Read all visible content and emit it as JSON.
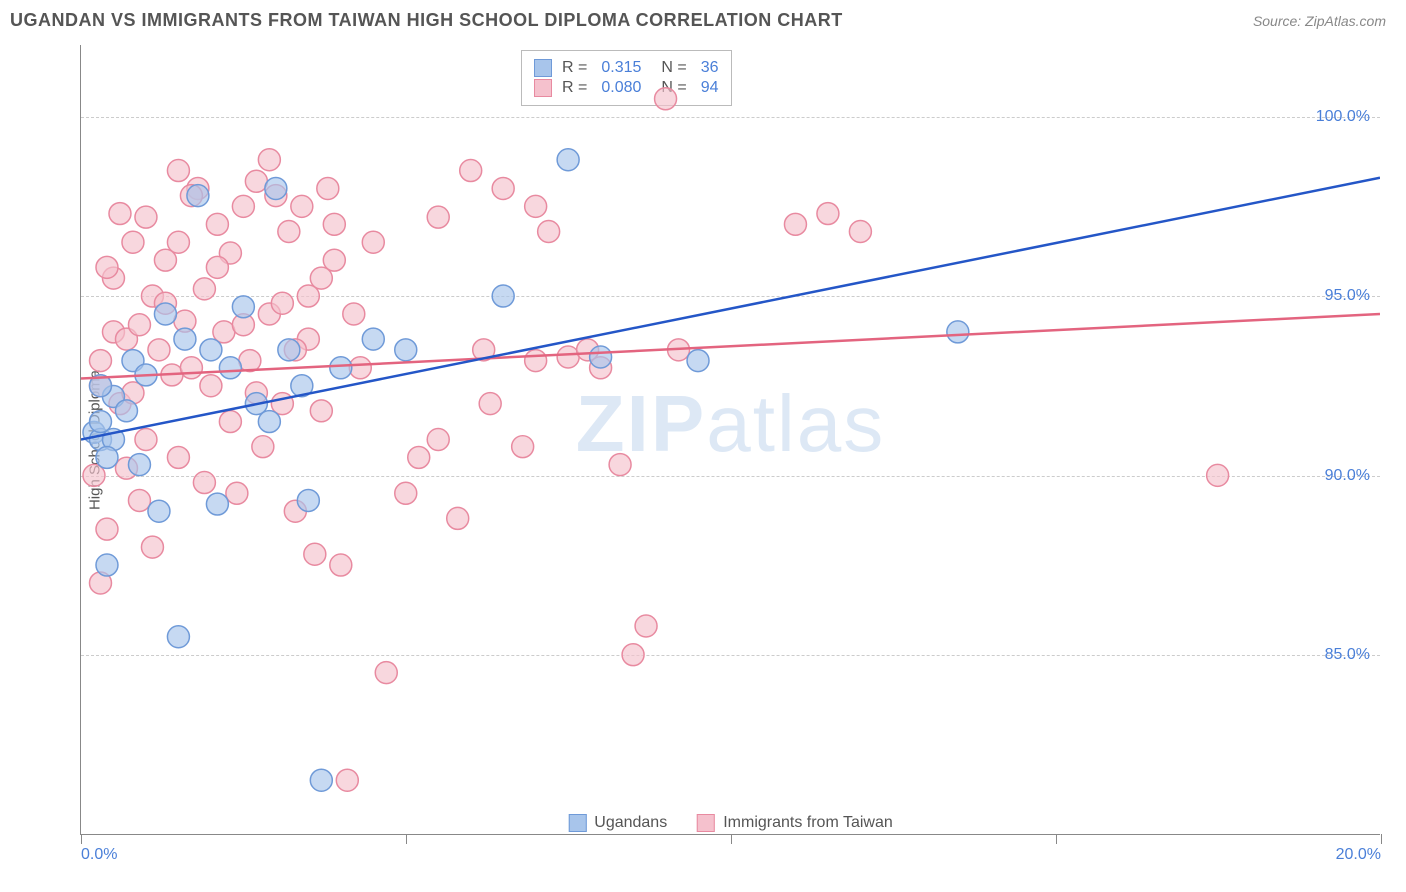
{
  "title": "UGANDAN VS IMMIGRANTS FROM TAIWAN HIGH SCHOOL DIPLOMA CORRELATION CHART",
  "source": "Source: ZipAtlas.com",
  "yAxisLabel": "High School Diploma",
  "watermark": {
    "z": "ZIP",
    "a": "atlas"
  },
  "chart": {
    "type": "scatter-with-regression",
    "xlim": [
      0,
      20
    ],
    "ylim": [
      80,
      102
    ],
    "x_ticks": [
      0,
      5,
      10,
      15,
      20
    ],
    "x_tick_labels": {
      "0": "0.0%",
      "20": "20.0%"
    },
    "y_ticks": [
      85,
      90,
      95,
      100
    ],
    "y_tick_labels": {
      "85": "85.0%",
      "90": "90.0%",
      "95": "95.0%",
      "100": "100.0%"
    },
    "grid_color": "#cccccc",
    "background_color": "#ffffff",
    "series": {
      "ugandans": {
        "label": "Ugandans",
        "fill": "#a8c5eb",
        "stroke": "#6f9ad8",
        "line_color": "#2456c7",
        "opacity": 0.65,
        "marker_radius": 11,
        "R": "0.315",
        "N": "36",
        "trend": {
          "x1": 0,
          "y1": 91.0,
          "x2": 20,
          "y2": 98.3
        },
        "points": [
          [
            0.2,
            91.2
          ],
          [
            0.3,
            91.0
          ],
          [
            0.3,
            91.5
          ],
          [
            0.4,
            87.5
          ],
          [
            0.5,
            91.0
          ],
          [
            0.5,
            92.2
          ],
          [
            0.7,
            91.8
          ],
          [
            0.8,
            93.2
          ],
          [
            0.9,
            90.3
          ],
          [
            1.0,
            92.8
          ],
          [
            1.2,
            89.0
          ],
          [
            1.3,
            94.5
          ],
          [
            1.5,
            85.5
          ],
          [
            1.6,
            93.8
          ],
          [
            1.8,
            97.8
          ],
          [
            2.0,
            93.5
          ],
          [
            2.1,
            89.2
          ],
          [
            2.3,
            93.0
          ],
          [
            2.5,
            94.7
          ],
          [
            2.7,
            92.0
          ],
          [
            2.9,
            91.5
          ],
          [
            3.0,
            98.0
          ],
          [
            3.2,
            93.5
          ],
          [
            3.4,
            92.5
          ],
          [
            3.5,
            89.3
          ],
          [
            3.7,
            81.5
          ],
          [
            4.0,
            93.0
          ],
          [
            4.5,
            93.8
          ],
          [
            5.0,
            93.5
          ],
          [
            6.5,
            95.0
          ],
          [
            7.5,
            98.8
          ],
          [
            8.0,
            93.3
          ],
          [
            9.5,
            93.2
          ],
          [
            13.5,
            94.0
          ],
          [
            0.3,
            92.5
          ],
          [
            0.4,
            90.5
          ]
        ]
      },
      "taiwan": {
        "label": "Immigrants from Taiwan",
        "fill": "#f5c1cd",
        "stroke": "#e88aa0",
        "line_color": "#e3647f",
        "opacity": 0.65,
        "marker_radius": 11,
        "R": "0.080",
        "N": "94",
        "trend": {
          "x1": 0,
          "y1": 92.7,
          "x2": 20,
          "y2": 94.5
        },
        "points": [
          [
            0.2,
            90.0
          ],
          [
            0.3,
            92.5
          ],
          [
            0.3,
            93.2
          ],
          [
            0.4,
            88.5
          ],
          [
            0.5,
            94.0
          ],
          [
            0.5,
            95.5
          ],
          [
            0.6,
            92.0
          ],
          [
            0.7,
            93.8
          ],
          [
            0.8,
            96.5
          ],
          [
            0.8,
            92.3
          ],
          [
            0.9,
            94.2
          ],
          [
            1.0,
            97.2
          ],
          [
            1.0,
            91.0
          ],
          [
            1.1,
            95.0
          ],
          [
            1.2,
            93.5
          ],
          [
            1.3,
            96.0
          ],
          [
            1.4,
            92.8
          ],
          [
            1.5,
            98.5
          ],
          [
            1.5,
            90.5
          ],
          [
            1.6,
            94.3
          ],
          [
            1.7,
            93.0
          ],
          [
            1.8,
            98.0
          ],
          [
            1.9,
            95.2
          ],
          [
            2.0,
            92.5
          ],
          [
            2.1,
            97.0
          ],
          [
            2.2,
            94.0
          ],
          [
            2.3,
            96.2
          ],
          [
            2.4,
            89.5
          ],
          [
            2.5,
            97.5
          ],
          [
            2.6,
            93.2
          ],
          [
            2.7,
            98.2
          ],
          [
            2.8,
            90.8
          ],
          [
            2.9,
            94.5
          ],
          [
            3.0,
            97.8
          ],
          [
            3.1,
            92.0
          ],
          [
            3.2,
            96.8
          ],
          [
            3.3,
            89.0
          ],
          [
            3.4,
            97.5
          ],
          [
            3.5,
            93.8
          ],
          [
            3.6,
            87.8
          ],
          [
            3.7,
            95.5
          ],
          [
            3.8,
            98.0
          ],
          [
            3.9,
            97.0
          ],
          [
            4.0,
            87.5
          ],
          [
            4.1,
            81.5
          ],
          [
            4.3,
            93.0
          ],
          [
            4.5,
            96.5
          ],
          [
            4.7,
            84.5
          ],
          [
            5.0,
            89.5
          ],
          [
            5.2,
            90.5
          ],
          [
            5.5,
            97.2
          ],
          [
            5.8,
            88.8
          ],
          [
            6.0,
            98.5
          ],
          [
            6.2,
            93.5
          ],
          [
            6.3,
            92.0
          ],
          [
            6.5,
            98.0
          ],
          [
            6.8,
            90.8
          ],
          [
            7.0,
            97.5
          ],
          [
            7.2,
            96.8
          ],
          [
            7.5,
            93.3
          ],
          [
            7.8,
            93.5
          ],
          [
            8.0,
            93.0
          ],
          [
            8.3,
            90.3
          ],
          [
            8.5,
            85.0
          ],
          [
            8.7,
            85.8
          ],
          [
            9.0,
            100.5
          ],
          [
            9.2,
            93.5
          ],
          [
            11.0,
            97.0
          ],
          [
            11.5,
            97.3
          ],
          [
            12.0,
            96.8
          ],
          [
            0.3,
            87.0
          ],
          [
            0.4,
            95.8
          ],
          [
            0.6,
            97.3
          ],
          [
            0.7,
            90.2
          ],
          [
            0.9,
            89.3
          ],
          [
            1.1,
            88.0
          ],
          [
            1.3,
            94.8
          ],
          [
            1.5,
            96.5
          ],
          [
            1.7,
            97.8
          ],
          [
            1.9,
            89.8
          ],
          [
            2.1,
            95.8
          ],
          [
            2.3,
            91.5
          ],
          [
            2.5,
            94.2
          ],
          [
            2.7,
            92.3
          ],
          [
            2.9,
            98.8
          ],
          [
            3.1,
            94.8
          ],
          [
            3.3,
            93.5
          ],
          [
            3.5,
            95.0
          ],
          [
            3.7,
            91.8
          ],
          [
            3.9,
            96.0
          ],
          [
            4.2,
            94.5
          ],
          [
            5.5,
            91.0
          ],
          [
            17.5,
            90.0
          ],
          [
            7.0,
            93.2
          ]
        ]
      }
    }
  }
}
